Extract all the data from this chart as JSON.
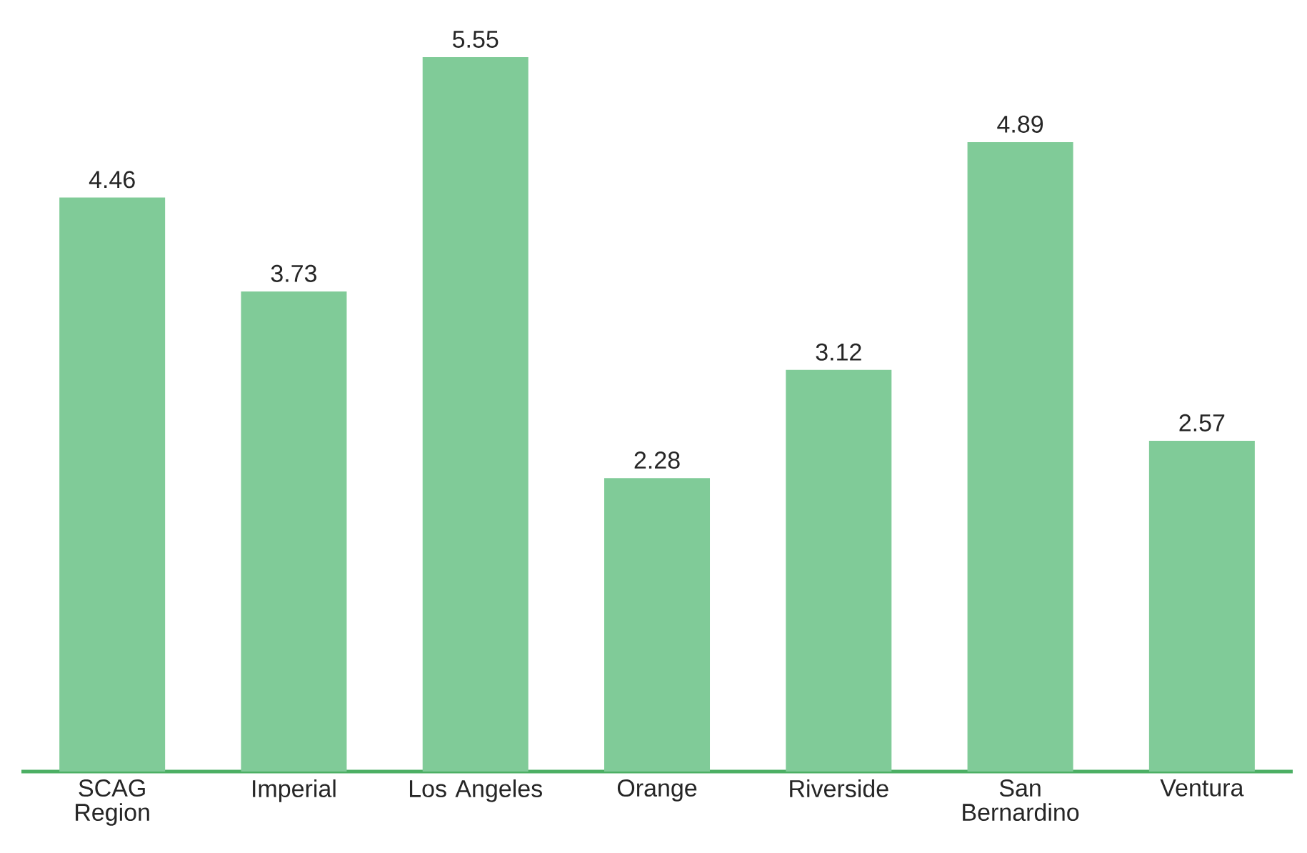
{
  "chart_data": {
    "type": "bar",
    "categories": [
      "SCAG Region",
      "Imperial",
      "Los Angeles",
      "Orange",
      "Riverside",
      "San Bernardino",
      "Ventura"
    ],
    "values": [
      4.46,
      3.73,
      5.55,
      2.28,
      3.12,
      4.89,
      2.57
    ],
    "color": "#80cb98",
    "data_labels": true
  }
}
